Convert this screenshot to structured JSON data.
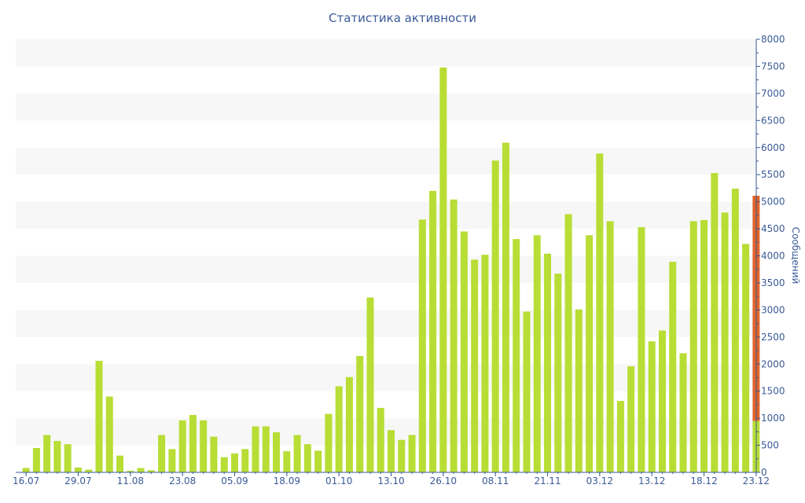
{
  "chart_data": {
    "type": "bar",
    "title": "Статистика активности",
    "xlabel": "",
    "ylabel": "Сообщений",
    "ylim": [
      0,
      8000
    ],
    "yticks": [
      0,
      500,
      1000,
      1500,
      2000,
      2500,
      3000,
      3500,
      4000,
      4500,
      5000,
      5500,
      6000,
      6500,
      7000,
      7500,
      8000
    ],
    "x_tick_labels": [
      {
        "index": 0,
        "label": "16.07"
      },
      {
        "index": 5,
        "label": "29.07"
      },
      {
        "index": 10,
        "label": "11.08"
      },
      {
        "index": 15,
        "label": "23.08"
      },
      {
        "index": 20,
        "label": "05.09"
      },
      {
        "index": 25,
        "label": "18.09"
      },
      {
        "index": 30,
        "label": "01.10"
      },
      {
        "index": 35,
        "label": "13.10"
      },
      {
        "index": 40,
        "label": "26.10"
      },
      {
        "index": 45,
        "label": "08.11"
      },
      {
        "index": 50,
        "label": "21.11"
      },
      {
        "index": 55,
        "label": "03.12"
      },
      {
        "index": 60,
        "label": "13.12"
      },
      {
        "index": 65,
        "label": "18.12"
      },
      {
        "index": 70,
        "label": "23.12"
      }
    ],
    "values": [
      80,
      450,
      690,
      580,
      520,
      90,
      50,
      2060,
      1400,
      310,
      30,
      80,
      40,
      690,
      430,
      960,
      1060,
      960,
      660,
      280,
      350,
      430,
      850,
      850,
      740,
      390,
      690,
      520,
      400,
      1080,
      1590,
      1760,
      2150,
      3230,
      1190,
      780,
      600,
      690,
      4670,
      5200,
      7480,
      5040,
      4450,
      3930,
      4020,
      5760,
      6090,
      4310,
      2970,
      4380,
      4040,
      3670,
      4770,
      3010,
      4380,
      5890,
      4640,
      1320,
      1960,
      4530,
      2420,
      2620,
      3890,
      2200,
      4640,
      4660,
      5530,
      4800,
      5240,
      4220,
      5110
    ],
    "highlight": {
      "index": 70,
      "base_value": 950
    },
    "colors": {
      "bar": "#b8dd35",
      "highlight": "#e0642a",
      "band": "#f7f7f7",
      "axis": "#3a5a98"
    },
    "grid": "alternating horizontal bands"
  }
}
